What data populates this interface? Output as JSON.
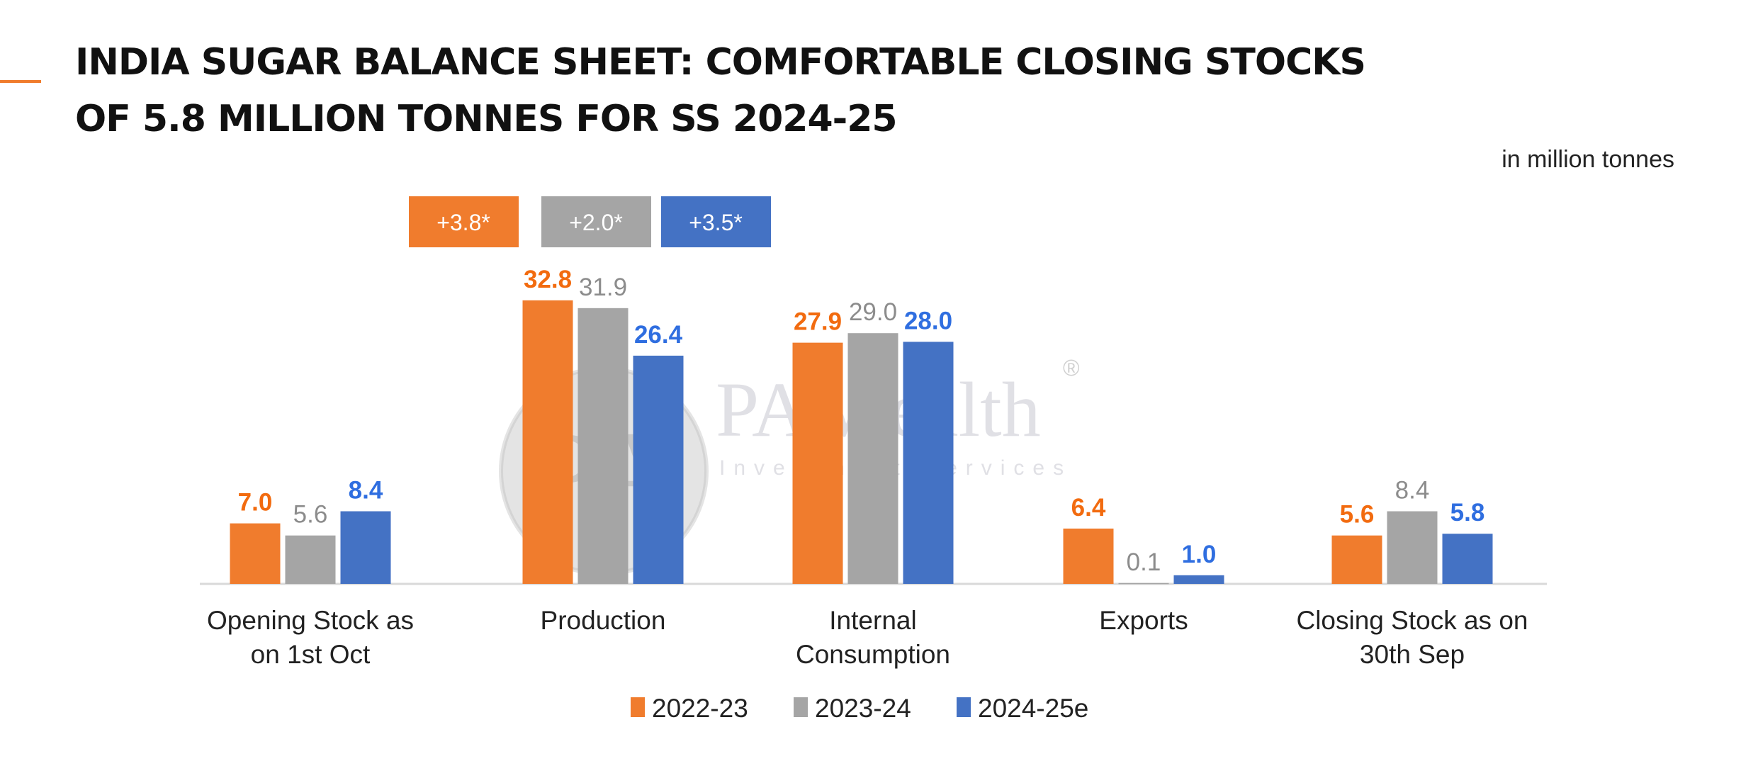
{
  "header": {
    "title_line1": "INDIA SUGAR BALANCE SHEET: COMFORTABLE CLOSING STOCKS",
    "title_line2": "OF 5.8 MILLION TONNES FOR SS 2024-25",
    "units": "in million tonnes"
  },
  "watermark": {
    "brand": "PA Wealth",
    "tagline": "Investment Services",
    "logo": "PA",
    "mark": "®"
  },
  "colors": {
    "s1": "#f07c2d",
    "s2": "#a5a5a5",
    "s3": "#4472c4",
    "s1_label": "#f26b0f",
    "s2_label": "#8c8c8c",
    "s3_label": "#2f6ee0"
  },
  "chart_data": {
    "type": "bar",
    "title": "India Sugar Balance Sheet",
    "ylabel": "in million tonnes",
    "ylim": [
      0,
      35
    ],
    "grid": false,
    "legend_position": "bottom",
    "categories": [
      [
        "Opening Stock as",
        "on 1st Oct"
      ],
      [
        "Production"
      ],
      [
        "Internal",
        "Consumption"
      ],
      [
        "Exports"
      ],
      [
        "Closing Stock as on",
        "30th Sep"
      ]
    ],
    "series": [
      {
        "name": "2022-23",
        "values": [
          7.0,
          32.8,
          27.9,
          6.4,
          5.6
        ]
      },
      {
        "name": "2023-24",
        "values": [
          5.6,
          31.9,
          29.0,
          0.1,
          8.4
        ]
      },
      {
        "name": "2024-25e",
        "values": [
          8.4,
          26.4,
          28.0,
          1.0,
          5.8
        ]
      }
    ],
    "annotations": [
      "+3.8*",
      "+2.0*",
      "+3.5*"
    ]
  }
}
